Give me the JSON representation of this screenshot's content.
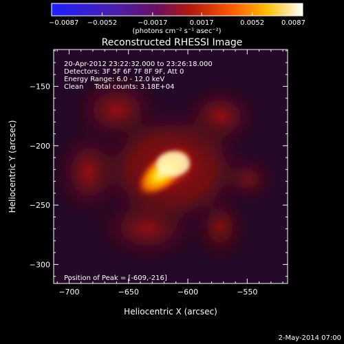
{
  "chart_data": {
    "type": "heatmap",
    "title": "Reconstructed RHESSI Image",
    "xlabel": "Heliocentric X (arcsec)",
    "ylabel": "Heliocentric Y (arcsec)",
    "xlim": [
      -713,
      -516
    ],
    "ylim": [
      -316,
      -119
    ],
    "x_ticks": [
      -700,
      -650,
      -600,
      -550
    ],
    "y_ticks": [
      -150,
      -200,
      -250,
      -300
    ],
    "x_tick_labels": [
      "−700",
      "−650",
      "−600",
      "−550"
    ],
    "y_tick_labels": [
      "−150",
      "−200",
      "−250",
      "−300"
    ],
    "colorbar": {
      "colormap": "hot (blue-purple-red-orange-yellow-white)",
      "range": [
        -0.0087,
        0.0087
      ],
      "ticks": [
        -0.0087,
        -0.0052,
        -0.0017,
        0.0017,
        0.0052,
        0.0087
      ],
      "tick_labels": [
        "−0.0087",
        "−0.0052",
        "−0.0017",
        "0.0017",
        "0.0052",
        "0.0087"
      ],
      "unit_label": "(photons cm⁻² s⁻¹ asec⁻²)"
    },
    "annotations": [
      "20-Apr-2012 23:22:32.000 to 23:26:18.000",
      "Detectors: 3F 5F 6F 7F 8F 9F, Att 0",
      "Energy Range: 6.0 - 12.0 keV",
      "Clean     Total counts: 3.18E+04"
    ],
    "peak_label": "Position of Peak = [-609,-216]",
    "peak_position": [
      -609,
      -216
    ],
    "timestamp": "2-May-2014 07:00",
    "grid": false
  },
  "colors": {
    "background": "#000000",
    "foreground": "#ffffff",
    "colorbar_stops": [
      "#1f1fff",
      "#5a1a9a",
      "#7a1040",
      "#c01808",
      "#ff5a00",
      "#ffc400",
      "#ffffff"
    ]
  }
}
